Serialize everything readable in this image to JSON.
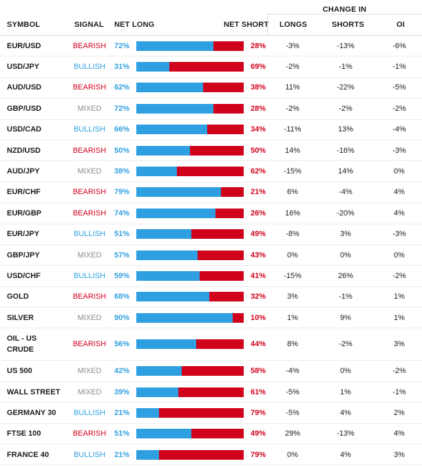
{
  "header": {
    "symbol": "SYMBOL",
    "signal": "SIGNAL",
    "net_long": "NET LONG",
    "net_short": "NET SHORT",
    "change_in": "CHANGE IN",
    "longs": "LONGS",
    "shorts": "SHORTS",
    "oi": "OI"
  },
  "rows": [
    {
      "symbol": "EUR/USD",
      "signal": "BEARISH",
      "net_long": "72%",
      "net_short": "28%",
      "long_fraction": 0.72,
      "longs": "-3%",
      "shorts": "-13%",
      "oi": "-6%"
    },
    {
      "symbol": "USD/JPY",
      "signal": "BULLISH",
      "net_long": "31%",
      "net_short": "69%",
      "long_fraction": 0.31,
      "longs": "-2%",
      "shorts": "-1%",
      "oi": "-1%"
    },
    {
      "symbol": "AUD/USD",
      "signal": "BEARISH",
      "net_long": "62%",
      "net_short": "38%",
      "long_fraction": 0.62,
      "longs": "11%",
      "shorts": "-22%",
      "oi": "-5%"
    },
    {
      "symbol": "GBP/USD",
      "signal": "MIXED",
      "net_long": "72%",
      "net_short": "28%",
      "long_fraction": 0.72,
      "longs": "-2%",
      "shorts": "-2%",
      "oi": "-2%"
    },
    {
      "symbol": "USD/CAD",
      "signal": "BULLISH",
      "net_long": "66%",
      "net_short": "34%",
      "long_fraction": 0.66,
      "longs": "-11%",
      "shorts": "13%",
      "oi": "-4%"
    },
    {
      "symbol": "NZD/USD",
      "signal": "BEARISH",
      "net_long": "50%",
      "net_short": "50%",
      "long_fraction": 0.5,
      "longs": "14%",
      "shorts": "-16%",
      "oi": "-3%"
    },
    {
      "symbol": "AUD/JPY",
      "signal": "MIXED",
      "net_long": "38%",
      "net_short": "62%",
      "long_fraction": 0.38,
      "longs": "-15%",
      "shorts": "14%",
      "oi": "0%"
    },
    {
      "symbol": "EUR/CHF",
      "signal": "BEARISH",
      "net_long": "79%",
      "net_short": "21%",
      "long_fraction": 0.79,
      "longs": "6%",
      "shorts": "-4%",
      "oi": "4%"
    },
    {
      "symbol": "EUR/GBP",
      "signal": "BEARISH",
      "net_long": "74%",
      "net_short": "26%",
      "long_fraction": 0.74,
      "longs": "16%",
      "shorts": "-20%",
      "oi": "4%"
    },
    {
      "symbol": "EUR/JPY",
      "signal": "BULLISH",
      "net_long": "51%",
      "net_short": "49%",
      "long_fraction": 0.51,
      "longs": "-8%",
      "shorts": "3%",
      "oi": "-3%"
    },
    {
      "symbol": "GBP/JPY",
      "signal": "MIXED",
      "net_long": "57%",
      "net_short": "43%",
      "long_fraction": 0.57,
      "longs": "0%",
      "shorts": "0%",
      "oi": "0%"
    },
    {
      "symbol": "USD/CHF",
      "signal": "BULLISH",
      "net_long": "59%",
      "net_short": "41%",
      "long_fraction": 0.59,
      "longs": "-15%",
      "shorts": "26%",
      "oi": "-2%"
    },
    {
      "symbol": "GOLD",
      "signal": "BEARISH",
      "net_long": "68%",
      "net_short": "32%",
      "long_fraction": 0.68,
      "longs": "3%",
      "shorts": "-1%",
      "oi": "1%"
    },
    {
      "symbol": "SILVER",
      "signal": "MIXED",
      "net_long": "90%",
      "net_short": "10%",
      "long_fraction": 0.9,
      "longs": "1%",
      "shorts": "9%",
      "oi": "1%"
    },
    {
      "symbol": "OIL - US CRUDE",
      "signal": "BEARISH",
      "net_long": "56%",
      "net_short": "44%",
      "long_fraction": 0.56,
      "longs": "8%",
      "shorts": "-2%",
      "oi": "3%",
      "tall": true
    },
    {
      "symbol": "US 500",
      "signal": "MIXED",
      "net_long": "42%",
      "net_short": "58%",
      "long_fraction": 0.42,
      "longs": "-4%",
      "shorts": "0%",
      "oi": "-2%"
    },
    {
      "symbol": "WALL STREET",
      "signal": "MIXED",
      "net_long": "39%",
      "net_short": "61%",
      "long_fraction": 0.39,
      "longs": "-5%",
      "shorts": "1%",
      "oi": "-1%"
    },
    {
      "symbol": "GERMANY 30",
      "signal": "BULLISH",
      "net_long": "21%",
      "net_short": "79%",
      "long_fraction": 0.21,
      "longs": "-5%",
      "shorts": "4%",
      "oi": "2%"
    },
    {
      "symbol": "FTSE 100",
      "signal": "BEARISH",
      "net_long": "51%",
      "net_short": "49%",
      "long_fraction": 0.51,
      "longs": "29%",
      "shorts": "-13%",
      "oi": "4%"
    },
    {
      "symbol": "FRANCE 40",
      "signal": "BULLISH",
      "net_long": "21%",
      "net_short": "79%",
      "long_fraction": 0.21,
      "longs": "0%",
      "shorts": "4%",
      "oi": "3%"
    }
  ],
  "colors": {
    "bearish": "#d0021b",
    "bullish": "#2e9fe0",
    "mixed": "#8c8c8c",
    "long_bar": "#2e9fe0",
    "short_bar": "#d0021b"
  }
}
